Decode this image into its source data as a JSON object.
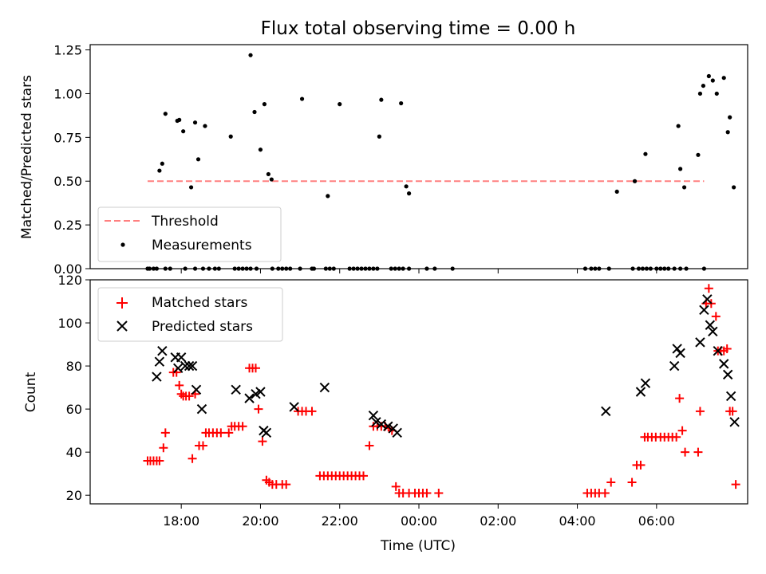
{
  "chart_data": [
    {
      "type": "scatter",
      "title": "Flux total observing time = 0.00 h",
      "ylabel": "Matched/Predicted stars",
      "xlabel": "",
      "x_unit": "hours since 17:00 UTC (axis ticks show clock time)",
      "ylim": [
        0,
        1.28
      ],
      "yticks": [
        0.0,
        0.25,
        0.5,
        0.75,
        1.0,
        1.25
      ],
      "ytick_labels": [
        "0.00",
        "0.25",
        "0.50",
        "0.75",
        "1.00",
        "1.25"
      ],
      "legend": {
        "location": "lower-left",
        "entries": [
          "Threshold",
          "Measurements"
        ]
      },
      "threshold": {
        "name": "Threshold",
        "value": 0.5,
        "x_range": [
          0.15,
          14.2
        ],
        "color": "#ff8080",
        "style": "dashed"
      },
      "series": [
        {
          "name": "Measurements",
          "marker": "dot",
          "color": "#000000",
          "points": [
            [
              0.15,
              0
            ],
            [
              0.2,
              0
            ],
            [
              0.3,
              0
            ],
            [
              0.38,
              0
            ],
            [
              0.6,
              0
            ],
            [
              0.72,
              0
            ],
            [
              1.1,
              0
            ],
            [
              1.35,
              0
            ],
            [
              1.55,
              0
            ],
            [
              1.7,
              0
            ],
            [
              1.85,
              0
            ],
            [
              1.95,
              0
            ],
            [
              2.35,
              0
            ],
            [
              2.45,
              0
            ],
            [
              2.55,
              0
            ],
            [
              2.65,
              0
            ],
            [
              2.75,
              0
            ],
            [
              2.9,
              0
            ],
            [
              3.3,
              0
            ],
            [
              3.45,
              0
            ],
            [
              3.55,
              0
            ],
            [
              3.65,
              0
            ],
            [
              3.75,
              0
            ],
            [
              4.0,
              0
            ],
            [
              4.3,
              0
            ],
            [
              4.35,
              0
            ],
            [
              4.65,
              0
            ],
            [
              4.75,
              0
            ],
            [
              4.85,
              0
            ],
            [
              5.25,
              0
            ],
            [
              5.35,
              0
            ],
            [
              5.45,
              0
            ],
            [
              5.55,
              0
            ],
            [
              5.65,
              0
            ],
            [
              5.75,
              0
            ],
            [
              5.85,
              0
            ],
            [
              5.95,
              0
            ],
            [
              6.3,
              0
            ],
            [
              6.4,
              0
            ],
            [
              6.5,
              0
            ],
            [
              6.6,
              0
            ],
            [
              6.75,
              0
            ],
            [
              7.2,
              0
            ],
            [
              7.4,
              0
            ],
            [
              7.85,
              0
            ],
            [
              11.2,
              0
            ],
            [
              11.35,
              0
            ],
            [
              11.45,
              0
            ],
            [
              11.55,
              0
            ],
            [
              11.8,
              0
            ],
            [
              12.4,
              0
            ],
            [
              12.55,
              0
            ],
            [
              12.65,
              0
            ],
            [
              12.75,
              0
            ],
            [
              12.85,
              0
            ],
            [
              13.0,
              0
            ],
            [
              13.1,
              0
            ],
            [
              13.2,
              0
            ],
            [
              13.3,
              0
            ],
            [
              13.45,
              0
            ],
            [
              13.6,
              0
            ],
            [
              13.75,
              0
            ],
            [
              14.2,
              0
            ],
            [
              0.45,
              0.56
            ],
            [
              0.52,
              0.6
            ],
            [
              0.6,
              0.885
            ],
            [
              0.9,
              0.845
            ],
            [
              0.95,
              0.85
            ],
            [
              1.05,
              0.785
            ],
            [
              1.25,
              0.465
            ],
            [
              1.35,
              0.835
            ],
            [
              1.43,
              0.625
            ],
            [
              1.6,
              0.815
            ],
            [
              2.25,
              0.755
            ],
            [
              2.75,
              1.22
            ],
            [
              2.85,
              0.895
            ],
            [
              3.0,
              0.68
            ],
            [
              3.1,
              0.94
            ],
            [
              3.2,
              0.54
            ],
            [
              3.28,
              0.51
            ],
            [
              4.05,
              0.97
            ],
            [
              4.7,
              0.415
            ],
            [
              5.0,
              0.94
            ],
            [
              6.0,
              0.755
            ],
            [
              6.05,
              0.965
            ],
            [
              6.55,
              0.945
            ],
            [
              6.68,
              0.47
            ],
            [
              6.75,
              0.43
            ],
            [
              12.0,
              0.44
            ],
            [
              12.45,
              0.5
            ],
            [
              12.72,
              0.655
            ],
            [
              13.55,
              0.815
            ],
            [
              13.6,
              0.57
            ],
            [
              13.7,
              0.465
            ],
            [
              14.05,
              0.65
            ],
            [
              14.1,
              1.0
            ],
            [
              14.18,
              1.045
            ],
            [
              14.32,
              1.1
            ],
            [
              14.42,
              1.075
            ],
            [
              14.52,
              1.0
            ],
            [
              14.7,
              1.09
            ],
            [
              14.8,
              0.78
            ],
            [
              14.85,
              0.865
            ],
            [
              14.95,
              0.465
            ]
          ]
        }
      ]
    },
    {
      "type": "scatter",
      "title": "",
      "ylabel": "Count",
      "xlabel": "Time (UTC)",
      "x_unit": "hours since 17:00 UTC (axis ticks show clock time)",
      "xlim": [
        -1.3,
        15.3
      ],
      "xticks": [
        0,
        1,
        3,
        5,
        7,
        9,
        11,
        13,
        15
      ],
      "xtick_labels": [
        "",
        "18:00",
        "20:00",
        "22:00",
        "00:00",
        "02:00",
        "04:00",
        "06:00",
        ""
      ],
      "xtick_values": [
        1,
        3,
        5,
        7,
        9,
        11,
        13
      ],
      "ylim": [
        16,
        120
      ],
      "yticks": [
        20,
        40,
        60,
        80,
        100,
        120
      ],
      "ytick_labels": [
        "20",
        "40",
        "60",
        "80",
        "100",
        "120"
      ],
      "legend": {
        "location": "top-left",
        "entries": [
          "Matched stars",
          "Predicted stars"
        ]
      },
      "series": [
        {
          "name": "Matched stars",
          "marker": "plus",
          "color": "#ff0000",
          "points": [
            [
              0.15,
              36
            ],
            [
              0.22,
              36
            ],
            [
              0.3,
              36
            ],
            [
              0.38,
              36
            ],
            [
              0.45,
              36
            ],
            [
              0.55,
              42
            ],
            [
              0.6,
              49
            ],
            [
              0.8,
              77
            ],
            [
              0.88,
              77
            ],
            [
              0.95,
              71
            ],
            [
              1.0,
              67
            ],
            [
              1.05,
              66
            ],
            [
              1.12,
              66
            ],
            [
              1.2,
              66
            ],
            [
              1.28,
              37
            ],
            [
              1.35,
              67
            ],
            [
              1.45,
              43
            ],
            [
              1.55,
              43
            ],
            [
              1.62,
              49
            ],
            [
              1.7,
              49
            ],
            [
              1.8,
              49
            ],
            [
              1.9,
              49
            ],
            [
              2.0,
              49
            ],
            [
              2.2,
              49
            ],
            [
              2.27,
              52
            ],
            [
              2.35,
              52
            ],
            [
              2.45,
              52
            ],
            [
              2.55,
              52
            ],
            [
              2.72,
              79
            ],
            [
              2.8,
              79
            ],
            [
              2.88,
              79
            ],
            [
              2.95,
              60
            ],
            [
              3.05,
              45
            ],
            [
              3.15,
              27
            ],
            [
              3.22,
              26
            ],
            [
              3.3,
              25
            ],
            [
              3.4,
              25
            ],
            [
              3.55,
              25
            ],
            [
              3.65,
              25
            ],
            [
              3.95,
              59
            ],
            [
              4.05,
              59
            ],
            [
              4.15,
              59
            ],
            [
              4.3,
              59
            ],
            [
              4.5,
              29
            ],
            [
              4.6,
              29
            ],
            [
              4.7,
              29
            ],
            [
              4.8,
              29
            ],
            [
              4.9,
              29
            ],
            [
              5.0,
              29
            ],
            [
              5.1,
              29
            ],
            [
              5.2,
              29
            ],
            [
              5.3,
              29
            ],
            [
              5.4,
              29
            ],
            [
              5.5,
              29
            ],
            [
              5.6,
              29
            ],
            [
              5.75,
              43
            ],
            [
              5.85,
              52
            ],
            [
              5.95,
              52
            ],
            [
              6.05,
              52
            ],
            [
              6.15,
              52
            ],
            [
              6.25,
              51
            ],
            [
              6.32,
              50
            ],
            [
              6.42,
              24
            ],
            [
              6.5,
              21
            ],
            [
              6.6,
              21
            ],
            [
              6.75,
              21
            ],
            [
              6.9,
              21
            ],
            [
              7.0,
              21
            ],
            [
              7.1,
              21
            ],
            [
              7.2,
              21
            ],
            [
              7.5,
              21
            ],
            [
              11.25,
              21
            ],
            [
              11.35,
              21
            ],
            [
              11.45,
              21
            ],
            [
              11.55,
              21
            ],
            [
              11.7,
              21
            ],
            [
              11.85,
              26
            ],
            [
              12.38,
              26
            ],
            [
              12.5,
              34
            ],
            [
              12.6,
              34
            ],
            [
              12.7,
              47
            ],
            [
              12.78,
              47
            ],
            [
              12.88,
              47
            ],
            [
              12.98,
              47
            ],
            [
              13.1,
              47
            ],
            [
              13.2,
              47
            ],
            [
              13.3,
              47
            ],
            [
              13.4,
              47
            ],
            [
              13.5,
              47
            ],
            [
              13.58,
              65
            ],
            [
              13.65,
              50
            ],
            [
              13.72,
              40
            ],
            [
              14.05,
              40
            ],
            [
              14.1,
              59
            ],
            [
              14.25,
              109
            ],
            [
              14.32,
              116
            ],
            [
              14.38,
              109
            ],
            [
              14.5,
              103
            ],
            [
              14.55,
              87
            ],
            [
              14.62,
              87
            ],
            [
              14.7,
              87
            ],
            [
              14.78,
              88
            ],
            [
              14.85,
              59
            ],
            [
              14.92,
              59
            ],
            [
              15.0,
              25
            ]
          ]
        },
        {
          "name": "Predicted stars",
          "marker": "x",
          "color": "#000000",
          "points": [
            [
              0.38,
              75
            ],
            [
              0.45,
              82
            ],
            [
              0.52,
              87
            ],
            [
              0.85,
              84
            ],
            [
              0.92,
              79
            ],
            [
              1.0,
              84
            ],
            [
              1.1,
              80
            ],
            [
              1.2,
              80
            ],
            [
              1.28,
              80
            ],
            [
              1.38,
              69
            ],
            [
              1.52,
              60
            ],
            [
              2.38,
              69
            ],
            [
              2.72,
              65
            ],
            [
              2.88,
              67
            ],
            [
              3.0,
              68
            ],
            [
              3.08,
              50
            ],
            [
              3.15,
              49
            ],
            [
              3.85,
              61
            ],
            [
              4.62,
              70
            ],
            [
              5.85,
              57
            ],
            [
              5.92,
              54
            ],
            [
              6.05,
              53
            ],
            [
              6.22,
              52
            ],
            [
              6.35,
              51
            ],
            [
              6.45,
              49
            ],
            [
              11.72,
              59
            ],
            [
              12.6,
              68
            ],
            [
              12.72,
              72
            ],
            [
              13.45,
              80
            ],
            [
              13.52,
              88
            ],
            [
              13.6,
              86
            ],
            [
              14.1,
              91
            ],
            [
              14.2,
              106
            ],
            [
              14.28,
              111
            ],
            [
              14.35,
              99
            ],
            [
              14.42,
              96
            ],
            [
              14.55,
              87
            ],
            [
              14.7,
              81
            ],
            [
              14.8,
              76
            ],
            [
              14.88,
              66
            ],
            [
              14.97,
              54
            ]
          ]
        }
      ]
    }
  ]
}
